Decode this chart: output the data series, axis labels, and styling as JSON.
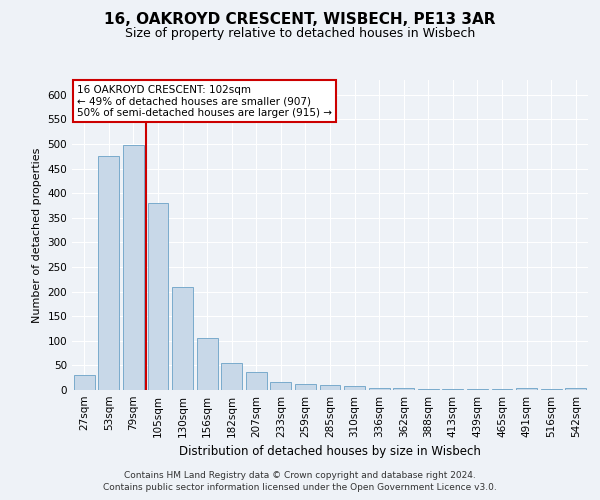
{
  "title1": "16, OAKROYD CRESCENT, WISBECH, PE13 3AR",
  "title2": "Size of property relative to detached houses in Wisbech",
  "xlabel": "Distribution of detached houses by size in Wisbech",
  "ylabel": "Number of detached properties",
  "categories": [
    "27sqm",
    "53sqm",
    "79sqm",
    "105sqm",
    "130sqm",
    "156sqm",
    "182sqm",
    "207sqm",
    "233sqm",
    "259sqm",
    "285sqm",
    "310sqm",
    "336sqm",
    "362sqm",
    "388sqm",
    "413sqm",
    "439sqm",
    "465sqm",
    "491sqm",
    "516sqm",
    "542sqm"
  ],
  "values": [
    30,
    475,
    497,
    380,
    210,
    105,
    55,
    37,
    17,
    13,
    10,
    8,
    5,
    4,
    3,
    3,
    2,
    2,
    4,
    3,
    4
  ],
  "bar_color": "#c8d8e8",
  "bar_edge_color": "#7aabcc",
  "highlight_color": "#cc0000",
  "annotation_text": "16 OAKROYD CRESCENT: 102sqm\n← 49% of detached houses are smaller (907)\n50% of semi-detached houses are larger (915) →",
  "annotation_box_color": "#ffffff",
  "annotation_box_edge": "#cc0000",
  "ylim": [
    0,
    630
  ],
  "yticks": [
    0,
    50,
    100,
    150,
    200,
    250,
    300,
    350,
    400,
    450,
    500,
    550,
    600
  ],
  "footer1": "Contains HM Land Registry data © Crown copyright and database right 2024.",
  "footer2": "Contains public sector information licensed under the Open Government Licence v3.0.",
  "bg_color": "#eef2f7",
  "plot_bg_color": "#eef2f7",
  "grid_color": "#ffffff",
  "title1_fontsize": 11,
  "title2_fontsize": 9,
  "xlabel_fontsize": 8.5,
  "ylabel_fontsize": 8,
  "tick_fontsize": 7.5,
  "annotation_fontsize": 7.5,
  "footer_fontsize": 6.5
}
